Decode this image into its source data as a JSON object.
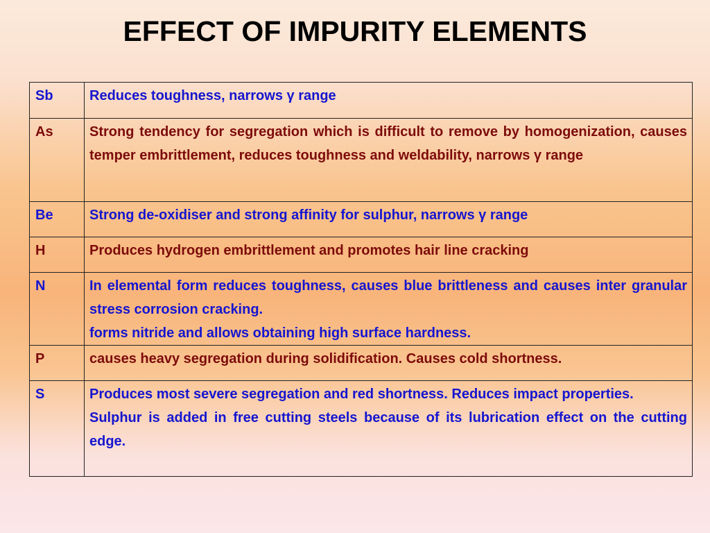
{
  "title": "EFFECT OF IMPURITY ELEMENTS",
  "colors": {
    "blue": "#1515d0",
    "dark_red": "#7d0b0b"
  },
  "rows": [
    {
      "element": "Sb",
      "color": "blue",
      "lines": [
        "Reduces toughness, narrows γ range"
      ]
    },
    {
      "element": "As",
      "color": "dark_red",
      "lines": [
        "Strong tendency for segregation which is difficult to remove by homogenization, causes temper embrittlement, reduces toughness and weldability, narrows γ range"
      ]
    },
    {
      "element": "Be",
      "color": "blue",
      "lines": [
        "Strong de-oxidiser and strong affinity for sulphur, narrows γ range"
      ]
    },
    {
      "element": "H",
      "color": "dark_red",
      "lines": [
        "Produces hydrogen embrittlement and promotes hair line cracking"
      ]
    },
    {
      "element": "N",
      "color": "blue",
      "lines": [
        "In elemental form reduces toughness, causes blue brittleness and causes inter granular stress corrosion cracking.",
        "forms nitride and allows obtaining high surface hardness."
      ]
    },
    {
      "element": "P",
      "color": "dark_red",
      "lines": [
        "causes heavy segregation during solidification. Causes cold shortness."
      ]
    },
    {
      "element": "S",
      "color": "blue",
      "lines": [
        "Produces most severe segregation and red shortness. Reduces impact properties.",
        "Sulphur is added in free cutting steels because of its lubrication effect on the cutting edge."
      ]
    }
  ]
}
